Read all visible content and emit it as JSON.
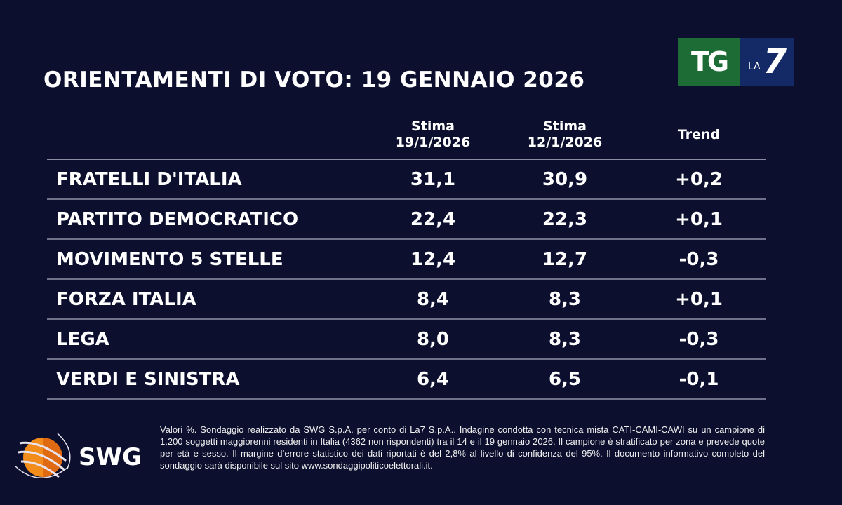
{
  "title": "ORIENTAMENTI DI VOTO: 19 GENNAIO 2026",
  "logo": {
    "tg": "TG",
    "la": "LA",
    "seven": "7",
    "swg": "SWG",
    "tg_green": "#1d6b35",
    "la7_blue": "#142a66",
    "swg_orange": "#f28c1b"
  },
  "headers": [
    {
      "line1": "Stima",
      "line2": "19/1/2026"
    },
    {
      "line1": "Stima",
      "line2": "12/1/2026"
    },
    {
      "line1": "Trend",
      "line2": ""
    }
  ],
  "rows": [
    {
      "party": "FRATELLI D'ITALIA",
      "current": "31,1",
      "previous": "30,9",
      "trend": "+0,2"
    },
    {
      "party": "PARTITO DEMOCRATICO",
      "current": "22,4",
      "previous": "22,3",
      "trend": "+0,1"
    },
    {
      "party": "MOVIMENTO 5 STELLE",
      "current": "12,4",
      "previous": "12,7",
      "trend": "-0,3"
    },
    {
      "party": "FORZA ITALIA",
      "current": "8,4",
      "previous": "8,3",
      "trend": "+0,1"
    },
    {
      "party": "LEGA",
      "current": "8,0",
      "previous": "8,3",
      "trend": "-0,3"
    },
    {
      "party": "VERDI E SINISTRA",
      "current": "6,4",
      "previous": "6,5",
      "trend": "-0,1"
    }
  ],
  "footnote": "Valori %. Sondaggio realizzato da SWG S.p.A. per conto di La7 S.p.A.. Indagine condotta con tecnica mista CATI-CAMI-CAWI su un campione di 1.200 soggetti maggiorenni residenti in Italia (4362 non rispondenti) tra il 14 e il 19 gennaio 2026. Il campione è stratificato per zona e prevede quote per età e sesso. Il margine d’errore statistico dei dati riportati è del 2,8% al livello di confidenza del 95%. Il documento informativo completo del sondaggio sarà disponibile sul sito www.sondaggipoliticoelettorali.it."
}
